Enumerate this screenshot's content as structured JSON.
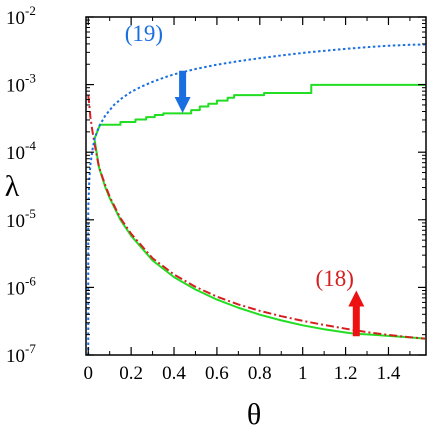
{
  "chart_data": {
    "type": "line",
    "title": "",
    "xlabel": "θ",
    "ylabel": "λ",
    "xlim": [
      -0.0105,
      1.575
    ],
    "ylim_log10": [
      -7,
      -2
    ],
    "yscale": "log",
    "grid": false,
    "legend": "none",
    "x_ticks": [
      {
        "value": 0,
        "label": "0"
      },
      {
        "value": 0.2,
        "label": "0.2"
      },
      {
        "value": 0.4,
        "label": "0.4"
      },
      {
        "value": 0.6,
        "label": "0.6"
      },
      {
        "value": 0.8,
        "label": "0.8"
      },
      {
        "value": 1.0,
        "label": "1"
      },
      {
        "value": 1.2,
        "label": "1.2"
      },
      {
        "value": 1.4,
        "label": "1.4"
      }
    ],
    "y_ticks": [
      {
        "exp": -2,
        "base": "10",
        "sup": "-2"
      },
      {
        "exp": -3,
        "base": "10",
        "sup": "-3"
      },
      {
        "exp": -4,
        "base": "10",
        "sup": "-4"
      },
      {
        "exp": -5,
        "base": "10",
        "sup": "-5"
      },
      {
        "exp": -6,
        "base": "10",
        "sup": "-6"
      },
      {
        "exp": -7,
        "base": "10",
        "sup": "-7"
      }
    ],
    "series": [
      {
        "key": "blue_bound",
        "style": "dotted",
        "color": "#1a6fe0",
        "points": [
          [
            0.0,
            1e-07
          ],
          [
            0.0,
            1.5e-05
          ],
          [
            0.005,
            4e-05
          ],
          [
            0.01,
            6.5e-05
          ],
          [
            0.02,
            0.00011
          ],
          [
            0.03,
            0.00016
          ],
          [
            0.05,
            0.00024
          ],
          [
            0.08,
            0.00035
          ],
          [
            0.12,
            0.0005
          ],
          [
            0.16,
            0.00064
          ],
          [
            0.2,
            0.00078
          ],
          [
            0.25,
            0.00094
          ],
          [
            0.3,
            0.0011
          ],
          [
            0.35,
            0.00126
          ],
          [
            0.4,
            0.00142
          ],
          [
            0.5,
            0.0017
          ],
          [
            0.6,
            0.00197
          ],
          [
            0.7,
            0.00222
          ],
          [
            0.8,
            0.00246
          ],
          [
            0.9,
            0.0027
          ],
          [
            1.0,
            0.00294
          ],
          [
            1.1,
            0.00316
          ],
          [
            1.2,
            0.00338
          ],
          [
            1.3,
            0.00358
          ],
          [
            1.4,
            0.00376
          ],
          [
            1.5,
            0.00388
          ],
          [
            1.57,
            0.00392
          ]
        ]
      },
      {
        "key": "red_bound",
        "style": "dashdot",
        "color": "#d42020",
        "points": [
          [
            0.0,
            0.0007
          ],
          [
            0.005,
            0.0005
          ],
          [
            0.01,
            0.00033
          ],
          [
            0.02,
            0.0002
          ],
          [
            0.03,
            0.00013
          ],
          [
            0.05,
            6e-05
          ],
          [
            0.08,
            3.2e-05
          ],
          [
            0.1,
            2.2e-05
          ],
          [
            0.15,
            1.06e-05
          ],
          [
            0.2,
            6.2e-06
          ],
          [
            0.3,
            2.7e-06
          ],
          [
            0.4,
            1.55e-06
          ],
          [
            0.5,
            1.02e-06
          ],
          [
            0.6,
            7.3e-07
          ],
          [
            0.7,
            5.6e-07
          ],
          [
            0.8,
            4.5e-07
          ],
          [
            0.9,
            3.75e-07
          ],
          [
            1.0,
            3.2e-07
          ],
          [
            1.1,
            2.78e-07
          ],
          [
            1.2,
            2.45e-07
          ],
          [
            1.3,
            2.18e-07
          ],
          [
            1.4,
            1.98e-07
          ],
          [
            1.5,
            1.83e-07
          ],
          [
            1.57,
            1.75e-07
          ]
        ]
      },
      {
        "key": "green_upper",
        "style": "solid",
        "color": "#22dd22",
        "points": [
          [
            0.03,
            0.00016
          ],
          [
            0.055,
            0.000255
          ],
          [
            0.15,
            0.000255
          ],
          [
            0.15,
            0.00028
          ],
          [
            0.22,
            0.00028
          ],
          [
            0.22,
            0.000305
          ],
          [
            0.27,
            0.000305
          ],
          [
            0.27,
            0.00033
          ],
          [
            0.31,
            0.00033
          ],
          [
            0.31,
            0.000355
          ],
          [
            0.35,
            0.000355
          ],
          [
            0.35,
            0.000375
          ],
          [
            0.48,
            0.000375
          ],
          [
            0.48,
            0.00042
          ],
          [
            0.52,
            0.00042
          ],
          [
            0.52,
            0.000475
          ],
          [
            0.56,
            0.000475
          ],
          [
            0.56,
            0.00052
          ],
          [
            0.6,
            0.00052
          ],
          [
            0.6,
            0.00058
          ],
          [
            0.65,
            0.00058
          ],
          [
            0.65,
            0.00064
          ],
          [
            0.68,
            0.00064
          ],
          [
            0.68,
            0.0007
          ],
          [
            0.82,
            0.0007
          ],
          [
            0.82,
            0.00075
          ],
          [
            1.04,
            0.00075
          ],
          [
            1.04,
            0.00099
          ],
          [
            1.57,
            0.00099
          ]
        ]
      },
      {
        "key": "green_lower",
        "style": "solid",
        "color": "#22dd22",
        "points": [
          [
            0.03,
            0.00015
          ],
          [
            0.05,
            6e-05
          ],
          [
            0.08,
            3e-05
          ],
          [
            0.1,
            2.1e-05
          ],
          [
            0.15,
            1e-05
          ],
          [
            0.2,
            5.8e-06
          ],
          [
            0.3,
            2.5e-06
          ],
          [
            0.4,
            1.42e-06
          ],
          [
            0.5,
            9.3e-07
          ],
          [
            0.6,
            6.6e-07
          ],
          [
            0.7,
            5e-07
          ],
          [
            0.8,
            3.95e-07
          ],
          [
            0.9,
            3.25e-07
          ],
          [
            1.0,
            2.75e-07
          ],
          [
            1.1,
            2.4e-07
          ],
          [
            1.2,
            2.15e-07
          ],
          [
            1.25,
            2.05e-07
          ],
          [
            1.3,
            2.02e-07
          ],
          [
            1.4,
            1.92e-07
          ],
          [
            1.5,
            1.82e-07
          ],
          [
            1.57,
            1.75e-07
          ]
        ]
      }
    ],
    "annotations": [
      {
        "key": "a19",
        "text": "(19)",
        "color": "#1a6fe0",
        "x": 0.17,
        "y": 0.0044
      },
      {
        "key": "a18",
        "text": "(18)",
        "color": "#d42020",
        "x": 1.06,
        "y": 1.05e-06
      }
    ],
    "arrows": [
      {
        "key": "blue_arrow",
        "direction": "down",
        "color": "#1a6fe0",
        "x": 0.44,
        "y_from": 0.0016,
        "y_to": 0.00038
      },
      {
        "key": "red_arrow",
        "direction": "up",
        "color": "#ee1111",
        "x": 1.25,
        "y_from": 1.9e-07,
        "y_to": 9e-07
      }
    ]
  }
}
